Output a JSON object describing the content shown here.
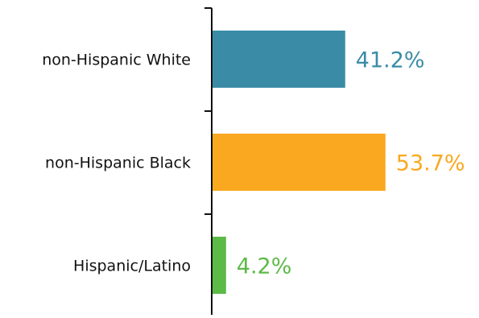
{
  "chart_data": {
    "type": "bar",
    "orientation": "horizontal",
    "categories": [
      "non-Hispanic White",
      "non-Hispanic Black",
      "Hispanic/Latino"
    ],
    "values": [
      41.2,
      53.7,
      4.2
    ],
    "value_labels": [
      "41.2%",
      "53.7%",
      "4.2%"
    ],
    "colors": [
      "#3a8ca6",
      "#f9a81f",
      "#5cba47"
    ],
    "xlim": [
      0,
      100
    ],
    "grid": false,
    "legend": "none",
    "title": "",
    "xlabel": "",
    "ylabel": ""
  }
}
